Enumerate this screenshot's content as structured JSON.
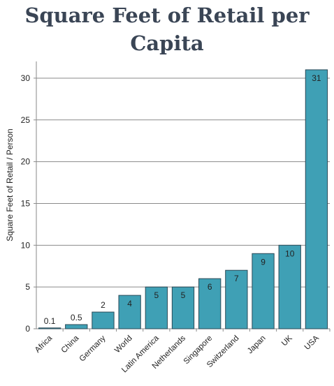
{
  "chart_data": {
    "type": "bar",
    "title_line1": "Square Feet of Retail per",
    "title_line2": "Capita",
    "ylabel": "Square Feet of Retail / Person",
    "xlabel": "",
    "categories": [
      "Africa",
      "China",
      "Germany",
      "World",
      "Latin America",
      "Netherlands",
      "Singapore",
      "Switzerland",
      "Japan",
      "UK",
      "USA"
    ],
    "values": [
      0.1,
      0.5,
      2,
      4,
      5,
      5,
      6,
      7,
      9,
      10,
      31
    ],
    "value_labels": [
      "0.1",
      "0.5",
      "2",
      "4",
      "5",
      "5",
      "6",
      "7",
      "9",
      "10",
      "31"
    ],
    "ylim": [
      0,
      32
    ],
    "yticks": [
      0,
      5,
      10,
      15,
      20,
      25,
      30
    ],
    "grid": true,
    "bar_color": "#3fa0b5",
    "bar_edge_color": "#2b4a57"
  }
}
